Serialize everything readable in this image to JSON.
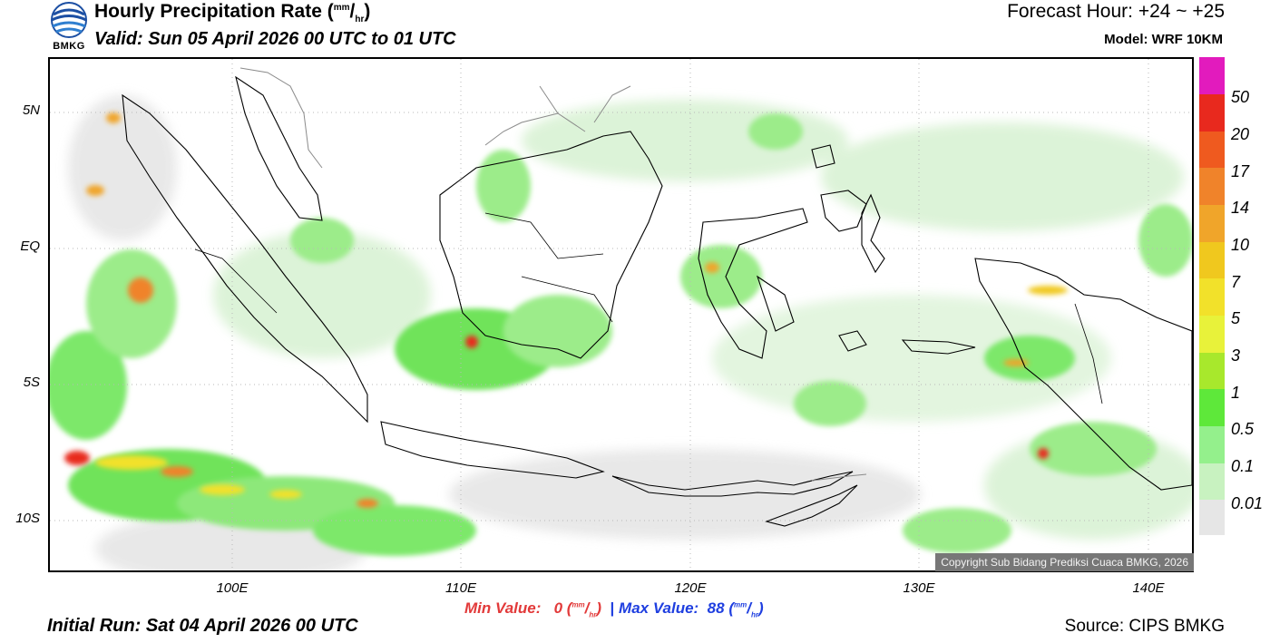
{
  "header": {
    "title_main": "Hourly Precipitation Rate (",
    "title_unit_num": "mm",
    "title_slash": "/",
    "title_unit_den": "hr",
    "title_close": ")",
    "valid": "Valid: Sun 05 April 2026 00 UTC to 01 UTC",
    "forecast_hour": "Forecast Hour: +24 ~ +25",
    "model": "Model: WRF 10KM",
    "logo_text": "BMKG"
  },
  "map": {
    "lat_labels": [
      "5N",
      "EQ",
      "5S",
      "10S"
    ],
    "lon_labels": [
      "100E",
      "110E",
      "120E",
      "130E",
      "140E"
    ],
    "copyright": "Copyright Sub Bidang Prediksi Cuaca BMKG, 2026"
  },
  "colorbar": {
    "labels": [
      "50",
      "20",
      "17",
      "14",
      "10",
      "7",
      "5",
      "3",
      "1",
      "0.5",
      "0.1",
      "0.01"
    ],
    "colors": [
      "#e21bbd",
      "#e8291e",
      "#ef5a1f",
      "#f0832a",
      "#f0a52a",
      "#f0c81e",
      "#f2e12a",
      "#e8f23a",
      "#a8e82c",
      "#5ee83a",
      "#94f08c",
      "#c8f2c0",
      "#e6e6e6"
    ]
  },
  "footer": {
    "min_label": "Min Value:",
    "min_value": "0",
    "unit_num": "mm",
    "unit_den": "hr",
    "separator": "|",
    "max_label": "Max Value:",
    "max_value": "88",
    "initial_run": "Initial Run: Sat 04 April 2026 00 UTC",
    "source": "Source: CIPS BMKG"
  }
}
